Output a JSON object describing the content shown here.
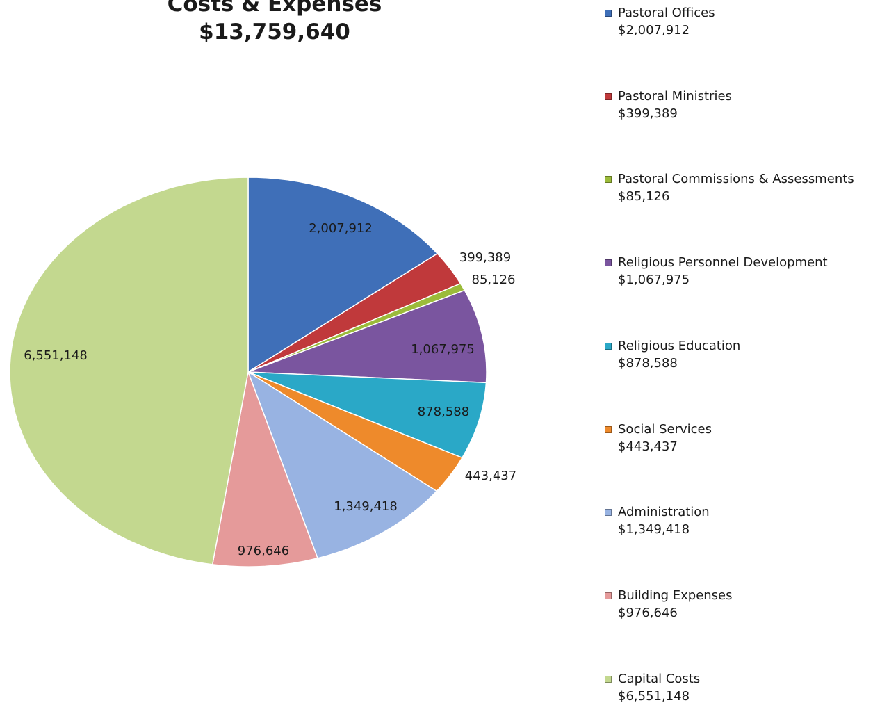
{
  "chart_data": {
    "type": "pie",
    "title": "Costs & Expenses",
    "subtitle": "$13,759,640",
    "legend_position": "right",
    "slices": [
      {
        "label": "Pastoral Offices",
        "value": 2007912,
        "value_label": "2,007,912",
        "legend_value": "$2,007,912",
        "color": "#3f6fb8"
      },
      {
        "label": "Pastoral Ministries",
        "value": 399389,
        "value_label": "399,389",
        "legend_value": "$399,389",
        "color": "#c0393b"
      },
      {
        "label": "Pastoral Commissions & Assessments",
        "value": 85126,
        "value_label": "85,126",
        "legend_value": "$85,126",
        "color": "#9bbb3a"
      },
      {
        "label": "Religious Personnel Development",
        "value": 1067975,
        "value_label": "1,067,975",
        "legend_value": "$1,067,975",
        "color": "#7a559f"
      },
      {
        "label": "Religious Education",
        "value": 878588,
        "value_label": "878,588",
        "legend_value": "$878,588",
        "color": "#2aa8c7"
      },
      {
        "label": "Social Services",
        "value": 443437,
        "value_label": "443,437",
        "legend_value": "$443,437",
        "color": "#ee8a2b"
      },
      {
        "label": "Administration",
        "value": 1349418,
        "value_label": "1,349,418",
        "legend_value": "$1,349,418",
        "color": "#98b3e2"
      },
      {
        "label": "Building Expenses",
        "value": 976646,
        "value_label": "976,646",
        "legend_value": "$976,646",
        "color": "#e59a9a"
      },
      {
        "label": "Capital Costs",
        "value": 6551148,
        "value_label": "6,551,148",
        "legend_value": "$6,551,148",
        "color": "#c3d88f"
      }
    ]
  }
}
